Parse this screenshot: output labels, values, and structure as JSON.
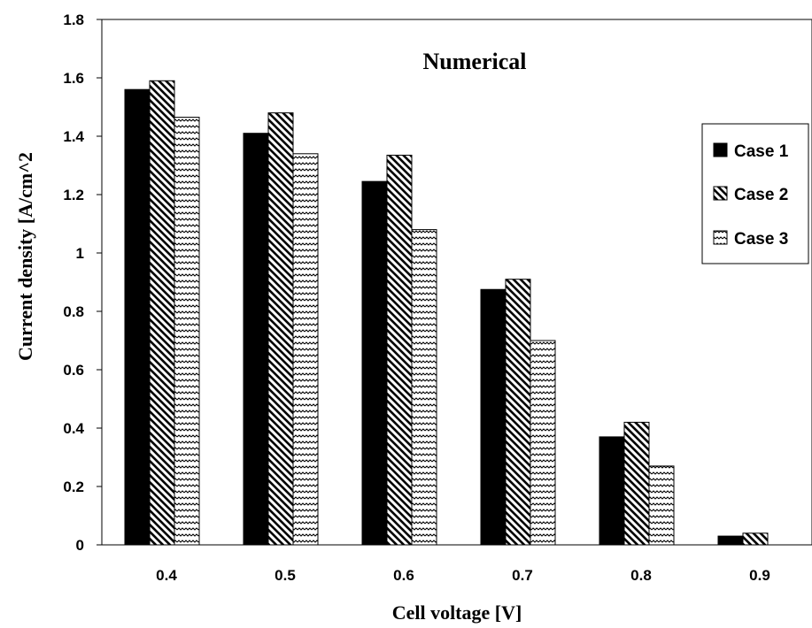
{
  "chart_data": {
    "type": "bar",
    "title": "Numerical",
    "xlabel": "Cell voltage [V]",
    "ylabel": "Current density [A/cm^2",
    "categories": [
      "0.4",
      "0.5",
      "0.6",
      "0.7",
      "0.8",
      "0.9"
    ],
    "ylim": [
      0,
      1.8
    ],
    "yticks": [
      "0",
      "0.2",
      "0.4",
      "0.6",
      "0.8",
      "1",
      "1.2",
      "1.4",
      "1.6",
      "1.8"
    ],
    "legend_position": "right",
    "grid": false,
    "series": [
      {
        "name": "Case 1",
        "pattern": "solid",
        "color": "#000000",
        "values": [
          1.56,
          1.41,
          1.245,
          0.875,
          0.37,
          0.03
        ]
      },
      {
        "name": "Case 2",
        "pattern": "diagonal-hatch",
        "color": "#000000",
        "values": [
          1.59,
          1.48,
          1.335,
          0.91,
          0.42,
          0.04
        ]
      },
      {
        "name": "Case 3",
        "pattern": "zigzag-hatch",
        "color": "#000000",
        "values": [
          1.465,
          1.34,
          1.08,
          0.7,
          0.27,
          0
        ]
      }
    ]
  }
}
